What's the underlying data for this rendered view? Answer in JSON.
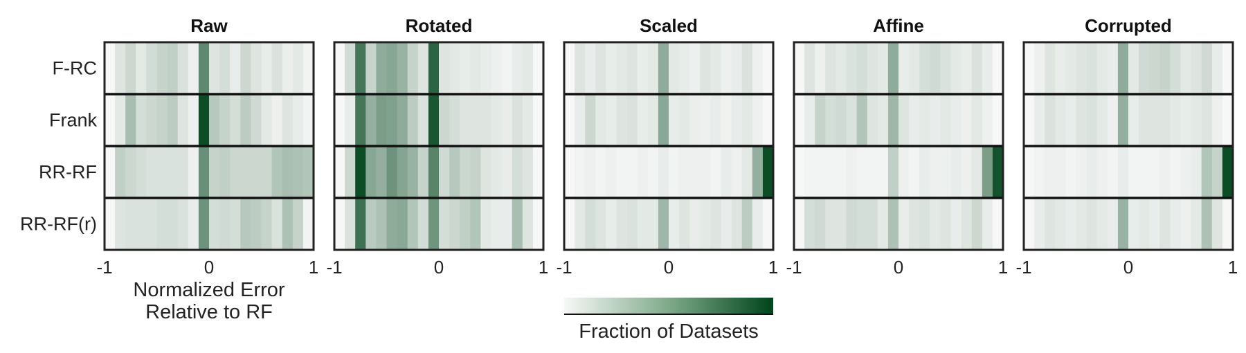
{
  "chart_data": {
    "type": "heatmap",
    "panels": [
      "Raw",
      "Rotated",
      "Scaled",
      "Affine",
      "Corrupted"
    ],
    "rows": [
      "F-RC",
      "Frank",
      "RR-RF",
      "RR-RF(r)"
    ],
    "x_ticks": [
      "-1",
      "0",
      "1"
    ],
    "xlim": [
      -1,
      1
    ],
    "bins": 20,
    "xlabel": [
      "Normalized Error",
      "Relative to RF"
    ],
    "colorbar_label": "Fraction of Datasets",
    "colormap": [
      "#f7f7f7",
      "#00441b"
    ],
    "fractions": {
      "Raw": [
        [
          0.0,
          0.1,
          0.18,
          0.08,
          0.15,
          0.2,
          0.22,
          0.12,
          0.04,
          0.62,
          0.1,
          0.14,
          0.06,
          0.18,
          0.1,
          0.06,
          0.12,
          0.05,
          0.08,
          0.02
        ],
        [
          0.0,
          0.08,
          0.32,
          0.14,
          0.18,
          0.2,
          0.24,
          0.1,
          0.04,
          0.95,
          0.26,
          0.2,
          0.14,
          0.24,
          0.16,
          0.08,
          0.04,
          0.1,
          0.06,
          0.02
        ],
        [
          0.0,
          0.22,
          0.18,
          0.14,
          0.12,
          0.12,
          0.12,
          0.12,
          0.04,
          0.58,
          0.2,
          0.22,
          0.18,
          0.18,
          0.18,
          0.18,
          0.28,
          0.32,
          0.3,
          0.28
        ],
        [
          0.0,
          0.1,
          0.12,
          0.12,
          0.12,
          0.14,
          0.14,
          0.12,
          0.06,
          0.56,
          0.14,
          0.16,
          0.14,
          0.26,
          0.24,
          0.2,
          0.12,
          0.3,
          0.2,
          0.02
        ]
      ],
      "Rotated": [
        [
          0.0,
          0.15,
          0.72,
          0.2,
          0.42,
          0.45,
          0.38,
          0.2,
          0.1,
          0.82,
          0.1,
          0.08,
          0.06,
          0.08,
          0.06,
          0.04,
          0.02,
          0.06,
          0.08,
          0.0
        ],
        [
          0.0,
          0.06,
          0.72,
          0.4,
          0.5,
          0.48,
          0.42,
          0.24,
          0.12,
          0.9,
          0.18,
          0.14,
          0.1,
          0.1,
          0.1,
          0.08,
          0.06,
          0.12,
          0.08,
          0.0
        ],
        [
          0.0,
          0.18,
          0.95,
          0.45,
          0.4,
          0.56,
          0.46,
          0.38,
          0.2,
          0.64,
          0.16,
          0.26,
          0.18,
          0.2,
          0.1,
          0.08,
          0.06,
          0.14,
          0.1,
          0.0
        ],
        [
          0.0,
          0.12,
          0.75,
          0.25,
          0.3,
          0.42,
          0.44,
          0.28,
          0.15,
          0.55,
          0.14,
          0.18,
          0.22,
          0.28,
          0.08,
          0.06,
          0.06,
          0.32,
          0.1,
          0.0
        ]
      ],
      "Scaled": [
        [
          0.0,
          0.1,
          0.06,
          0.1,
          0.06,
          0.08,
          0.1,
          0.06,
          0.08,
          0.42,
          0.08,
          0.06,
          0.04,
          0.1,
          0.08,
          0.04,
          0.06,
          0.12,
          0.04,
          0.0
        ],
        [
          0.0,
          0.06,
          0.18,
          0.08,
          0.06,
          0.1,
          0.12,
          0.06,
          0.08,
          0.44,
          0.06,
          0.08,
          0.05,
          0.04,
          0.06,
          0.03,
          0.06,
          0.08,
          0.04,
          0.0
        ],
        [
          0.0,
          0.02,
          0.04,
          0.02,
          0.04,
          0.02,
          0.02,
          0.04,
          0.02,
          0.06,
          0.02,
          0.04,
          0.04,
          0.04,
          0.02,
          0.06,
          0.04,
          0.08,
          0.4,
          0.95
        ],
        [
          0.0,
          0.08,
          0.14,
          0.1,
          0.06,
          0.1,
          0.12,
          0.08,
          0.08,
          0.36,
          0.06,
          0.1,
          0.06,
          0.08,
          0.1,
          0.06,
          0.1,
          0.24,
          0.06,
          0.0
        ]
      ],
      "Affine": [
        [
          0.0,
          0.1,
          0.04,
          0.1,
          0.08,
          0.12,
          0.14,
          0.1,
          0.08,
          0.42,
          0.06,
          0.08,
          0.14,
          0.16,
          0.12,
          0.08,
          0.06,
          0.12,
          0.06,
          0.0
        ],
        [
          0.0,
          0.06,
          0.2,
          0.14,
          0.16,
          0.12,
          0.28,
          0.1,
          0.08,
          0.36,
          0.1,
          0.06,
          0.08,
          0.06,
          0.08,
          0.06,
          0.04,
          0.08,
          0.04,
          0.0
        ],
        [
          0.0,
          0.02,
          0.02,
          0.02,
          0.02,
          0.04,
          0.02,
          0.02,
          0.02,
          0.22,
          0.04,
          0.02,
          0.06,
          0.04,
          0.04,
          0.06,
          0.04,
          0.08,
          0.5,
          0.92
        ],
        [
          0.0,
          0.14,
          0.16,
          0.1,
          0.1,
          0.16,
          0.14,
          0.14,
          0.08,
          0.3,
          0.06,
          0.1,
          0.12,
          0.08,
          0.1,
          0.06,
          0.1,
          0.18,
          0.06,
          0.0
        ]
      ],
      "Corrupted": [
        [
          0.0,
          0.04,
          0.1,
          0.06,
          0.08,
          0.1,
          0.12,
          0.08,
          0.06,
          0.42,
          0.08,
          0.16,
          0.18,
          0.2,
          0.14,
          0.08,
          0.1,
          0.16,
          0.06,
          0.0
        ],
        [
          0.0,
          0.06,
          0.12,
          0.08,
          0.06,
          0.1,
          0.12,
          0.08,
          0.04,
          0.4,
          0.06,
          0.1,
          0.1,
          0.1,
          0.08,
          0.06,
          0.08,
          0.1,
          0.04,
          0.0
        ],
        [
          0.0,
          0.02,
          0.04,
          0.04,
          0.02,
          0.04,
          0.06,
          0.04,
          0.02,
          0.06,
          0.02,
          0.02,
          0.02,
          0.04,
          0.02,
          0.04,
          0.06,
          0.28,
          0.2,
          0.95
        ],
        [
          0.0,
          0.06,
          0.1,
          0.08,
          0.06,
          0.08,
          0.1,
          0.08,
          0.06,
          0.38,
          0.06,
          0.08,
          0.06,
          0.1,
          0.06,
          0.04,
          0.08,
          0.3,
          0.1,
          0.0
        ]
      ]
    }
  }
}
